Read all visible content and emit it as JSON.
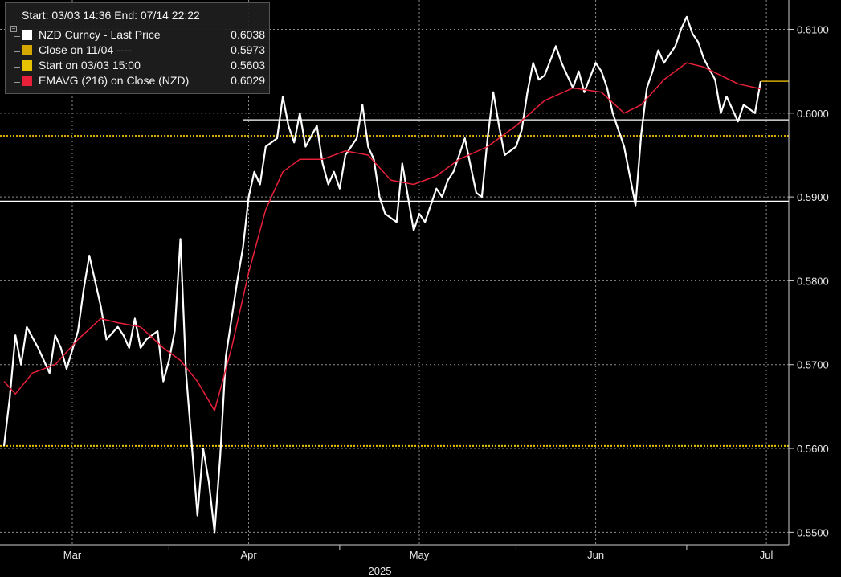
{
  "legend": {
    "header": "Start: 03/03 14:36 End: 07/14 22:22",
    "items": [
      {
        "label": "NZD Curncy - Last Price",
        "value": "0.6038",
        "color": "#ffffff"
      },
      {
        "label": "Close on 11/04 ----",
        "value": "0.5973",
        "color": "#d4a800"
      },
      {
        "label": "Start on 03/03 15:00",
        "value": "0.5603",
        "color": "#e6c200"
      },
      {
        "label": "EMAVG (216)  on Close (NZD)",
        "value": "0.6029",
        "color": "#e8203a"
      }
    ]
  },
  "chart_data": {
    "type": "line",
    "title": "",
    "xlabel": "2025",
    "ylabel": "",
    "xlim": [
      "2025-03-03",
      "2025-07-14"
    ],
    "ylim": [
      0.5485,
      0.6135
    ],
    "y_ticks": [
      "0.5500",
      "0.5600",
      "0.5700",
      "0.5800",
      "0.5900",
      "0.6000",
      "0.6100"
    ],
    "x_ticks": [
      {
        "label": "Mar",
        "date": "2025-03-15"
      },
      {
        "label": "Apr",
        "date": "2025-04-15"
      },
      {
        "label": "May",
        "date": "2025-05-15"
      },
      {
        "label": "Jun",
        "date": "2025-06-15"
      },
      {
        "label": "Jul",
        "date": "2025-07-15"
      }
    ],
    "x_separators": [
      "2025-04-01",
      "2025-05-01",
      "2025-06-01",
      "2025-07-01"
    ],
    "year_label": "2025",
    "grid": true,
    "last_price_marker": 0.6038,
    "reference_lines": [
      {
        "name": "Close on 11/04",
        "value": 0.5973,
        "style": "dotted",
        "color": "#d4a800"
      },
      {
        "name": "Start on 03/03 15:00",
        "value": 0.5603,
        "style": "dotted",
        "color": "#e6c200"
      },
      {
        "value": 0.5992,
        "from": "2025-04-14",
        "style": "solid",
        "color": "#ffffff"
      },
      {
        "value": 0.5895,
        "style": "solid",
        "color": "#ffffff"
      }
    ],
    "series": [
      {
        "name": "NZD Curncy - Last Price",
        "color": "#ffffff",
        "x": [
          "2025-03-03",
          "2025-03-04",
          "2025-03-05",
          "2025-03-06",
          "2025-03-07",
          "2025-03-09",
          "2025-03-10",
          "2025-03-11",
          "2025-03-12",
          "2025-03-13",
          "2025-03-14",
          "2025-03-16",
          "2025-03-17",
          "2025-03-18",
          "2025-03-19",
          "2025-03-20",
          "2025-03-21",
          "2025-03-23",
          "2025-03-24",
          "2025-03-25",
          "2025-03-26",
          "2025-03-27",
          "2025-03-28",
          "2025-03-30",
          "2025-03-31",
          "2025-04-01",
          "2025-04-02",
          "2025-04-03",
          "2025-04-04",
          "2025-04-06",
          "2025-04-07",
          "2025-04-08",
          "2025-04-09",
          "2025-04-10",
          "2025-04-11",
          "2025-04-13",
          "2025-04-14",
          "2025-04-15",
          "2025-04-16",
          "2025-04-17",
          "2025-04-18",
          "2025-04-20",
          "2025-04-21",
          "2025-04-22",
          "2025-04-23",
          "2025-04-24",
          "2025-04-25",
          "2025-04-27",
          "2025-04-28",
          "2025-04-29",
          "2025-04-30",
          "2025-05-01",
          "2025-05-02",
          "2025-05-04",
          "2025-05-05",
          "2025-05-06",
          "2025-05-07",
          "2025-05-08",
          "2025-05-09",
          "2025-05-11",
          "2025-05-12",
          "2025-05-13",
          "2025-05-14",
          "2025-05-15",
          "2025-05-16",
          "2025-05-18",
          "2025-05-19",
          "2025-05-20",
          "2025-05-21",
          "2025-05-22",
          "2025-05-23",
          "2025-05-25",
          "2025-05-26",
          "2025-05-27",
          "2025-05-28",
          "2025-05-29",
          "2025-05-30",
          "2025-06-01",
          "2025-06-02",
          "2025-06-03",
          "2025-06-04",
          "2025-06-05",
          "2025-06-06",
          "2025-06-08",
          "2025-06-09",
          "2025-06-10",
          "2025-06-11",
          "2025-06-12",
          "2025-06-13",
          "2025-06-15",
          "2025-06-16",
          "2025-06-17",
          "2025-06-18",
          "2025-06-19",
          "2025-06-20",
          "2025-06-22",
          "2025-06-23",
          "2025-06-24",
          "2025-06-25",
          "2025-06-26",
          "2025-06-27",
          "2025-06-29",
          "2025-06-30",
          "2025-07-01",
          "2025-07-02",
          "2025-07-03",
          "2025-07-04",
          "2025-07-06",
          "2025-07-07",
          "2025-07-08",
          "2025-07-09",
          "2025-07-10",
          "2025-07-11",
          "2025-07-13",
          "2025-07-14"
        ],
        "values": [
          0.5603,
          0.566,
          0.5735,
          0.57,
          0.5745,
          0.572,
          0.5705,
          0.569,
          0.5735,
          0.572,
          0.5695,
          0.574,
          0.579,
          0.583,
          0.58,
          0.577,
          0.573,
          0.5745,
          0.5735,
          0.572,
          0.5755,
          0.572,
          0.573,
          0.574,
          0.568,
          0.5705,
          0.574,
          0.585,
          0.569,
          0.552,
          0.56,
          0.556,
          0.55,
          0.559,
          0.571,
          0.58,
          0.584,
          0.59,
          0.593,
          0.5915,
          0.596,
          0.597,
          0.602,
          0.5985,
          0.5965,
          0.6,
          0.596,
          0.5985,
          0.594,
          0.5915,
          0.593,
          0.591,
          0.595,
          0.597,
          0.601,
          0.596,
          0.5945,
          0.59,
          0.588,
          0.587,
          0.594,
          0.59,
          0.586,
          0.588,
          0.587,
          0.591,
          0.59,
          0.592,
          0.593,
          0.595,
          0.597,
          0.5905,
          0.59,
          0.597,
          0.6025,
          0.5985,
          0.595,
          0.596,
          0.598,
          0.6025,
          0.606,
          0.604,
          0.6045,
          0.608,
          0.606,
          0.6045,
          0.603,
          0.605,
          0.6025,
          0.606,
          0.605,
          0.603,
          0.6,
          0.598,
          0.596,
          0.589,
          0.5975,
          0.603,
          0.605,
          0.6075,
          0.606,
          0.608,
          0.61,
          0.6115,
          0.6095,
          0.6085,
          0.6065,
          0.604,
          0.6,
          0.602,
          0.6005,
          0.599,
          0.601,
          0.6,
          0.6038
        ]
      },
      {
        "name": "EMAVG (216)  on Close (NZD)",
        "color": "#e8203a",
        "x": [
          "2025-03-03",
          "2025-03-05",
          "2025-03-08",
          "2025-03-12",
          "2025-03-16",
          "2025-03-20",
          "2025-03-23",
          "2025-03-27",
          "2025-03-31",
          "2025-04-03",
          "2025-04-06",
          "2025-04-09",
          "2025-04-12",
          "2025-04-15",
          "2025-04-18",
          "2025-04-21",
          "2025-04-24",
          "2025-04-28",
          "2025-05-02",
          "2025-05-06",
          "2025-05-10",
          "2025-05-14",
          "2025-05-18",
          "2025-05-22",
          "2025-05-27",
          "2025-06-01",
          "2025-06-06",
          "2025-06-11",
          "2025-06-16",
          "2025-06-20",
          "2025-06-23",
          "2025-06-27",
          "2025-07-01",
          "2025-07-04",
          "2025-07-07",
          "2025-07-10",
          "2025-07-14"
        ],
        "values": [
          0.568,
          0.5665,
          0.569,
          0.57,
          0.573,
          0.5755,
          0.575,
          0.5745,
          0.572,
          0.5705,
          0.568,
          0.5645,
          0.572,
          0.581,
          0.5885,
          0.593,
          0.5945,
          0.5945,
          0.5955,
          0.595,
          0.592,
          0.5915,
          0.5925,
          0.5945,
          0.596,
          0.5985,
          0.6015,
          0.603,
          0.6025,
          0.6,
          0.601,
          0.604,
          0.606,
          0.6055,
          0.6045,
          0.6035,
          0.6029
        ]
      }
    ]
  }
}
